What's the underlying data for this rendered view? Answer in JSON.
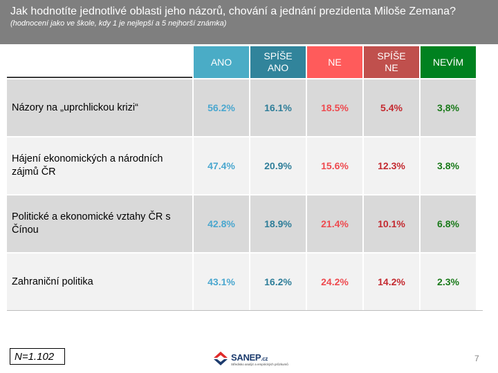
{
  "header": {
    "question": "Jak hodnotíte jednotlivé oblasti jeho názorů, chování a jednání prezidenta Miloše Zemana?",
    "note": "(hodnocení jako ve škole, kdy 1 je nejlepší a 5 nejhorší známka)"
  },
  "columns": [
    {
      "label": "ANO",
      "color": "#4aacc6"
    },
    {
      "label": "SPÍŠE\nANO",
      "color": "#31849b"
    },
    {
      "label": "NE",
      "color": "#ff5b5b"
    },
    {
      "label": "SPÍŠE\nNE",
      "color": "#c0504d"
    },
    {
      "label": "NEVÍM",
      "color": "#00811f"
    }
  ],
  "rows": [
    {
      "label": "Názory na „uprchlickou krizi“",
      "values": [
        "56.2%",
        "16.1%",
        "18.5%",
        "5.4%",
        "3,8%"
      ]
    },
    {
      "label": "Hájení ekonomických a národních\n zájmů ČR",
      "values": [
        "47.4%",
        "20.9%",
        "15.6%",
        "12.3%",
        "3.8%"
      ]
    },
    {
      "label": "Politické a ekonomické vztahy ČR s\nČínou",
      "values": [
        "42.8%",
        "18.9%",
        "21.4%",
        "10.1%",
        "6.8%"
      ]
    },
    {
      "label": "Zahraniční politika",
      "values": [
        "43.1%",
        "16.2%",
        "24.2%",
        "14.2%",
        "2.3%"
      ]
    }
  ],
  "footer": {
    "n_label": "N=1.102",
    "logo_name": "SANEP",
    "logo_suffix": ".cz",
    "logo_tagline": "Středisko analýz a empirických průzkumů",
    "page_number": "7"
  }
}
